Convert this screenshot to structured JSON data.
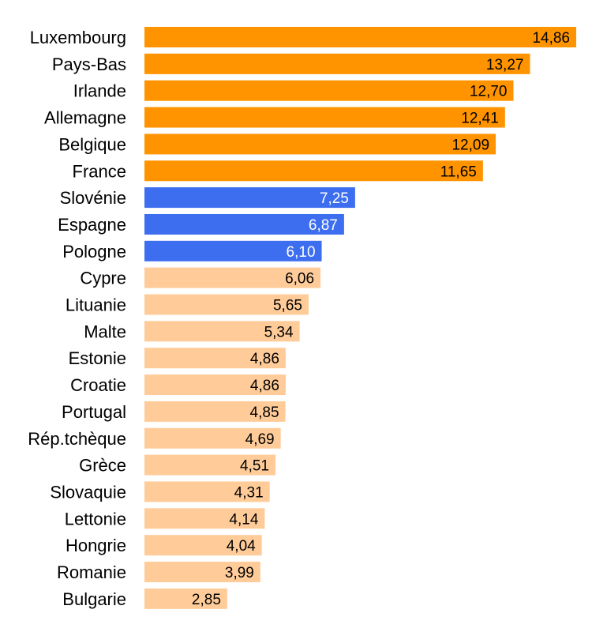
{
  "chart_data": {
    "type": "bar",
    "orientation": "horizontal",
    "categories": [
      "Luxembourg",
      "Pays-Bas",
      "Irlande",
      "Allemagne",
      "Belgique",
      "France",
      "Slovénie",
      "Espagne",
      "Pologne",
      "Cypre",
      "Lituanie",
      "Malte",
      "Estonie",
      "Croatie",
      "Portugal",
      "Rép.tchèque",
      "Grèce",
      "Slovaquie",
      "Lettonie",
      "Hongrie",
      "Romanie",
      "Bulgarie"
    ],
    "values": [
      14.86,
      13.27,
      12.7,
      12.41,
      12.09,
      11.65,
      7.25,
      6.87,
      6.1,
      6.06,
      5.65,
      5.34,
      4.86,
      4.86,
      4.85,
      4.69,
      4.51,
      4.31,
      4.14,
      4.04,
      3.99,
      2.85
    ],
    "value_labels": [
      "14,86",
      "13,27",
      "12,70",
      "12,41",
      "12,09",
      "11,65",
      "7,25",
      "6,87",
      "6,10",
      "6,06",
      "5,65",
      "5,34",
      "4,86",
      "4,86",
      "4,85",
      "4,69",
      "4,51",
      "4,31",
      "4,14",
      "4,04",
      "3,99",
      "2,85"
    ],
    "bar_groups": [
      "high",
      "high",
      "high",
      "high",
      "high",
      "high",
      "mid",
      "mid",
      "mid",
      "low",
      "low",
      "low",
      "low",
      "low",
      "low",
      "low",
      "low",
      "low",
      "low",
      "low",
      "low",
      "low"
    ],
    "colors": {
      "high": "#FF9400",
      "mid": "#3D6EEF",
      "low": "#FFCC99"
    },
    "label_colors": {
      "high": "#000000",
      "mid": "#ffffff",
      "low": "#000000"
    },
    "xlim": [
      0,
      14.86
    ],
    "grid": false,
    "legend": "none",
    "title": "",
    "xlabel": "",
    "ylabel": ""
  }
}
